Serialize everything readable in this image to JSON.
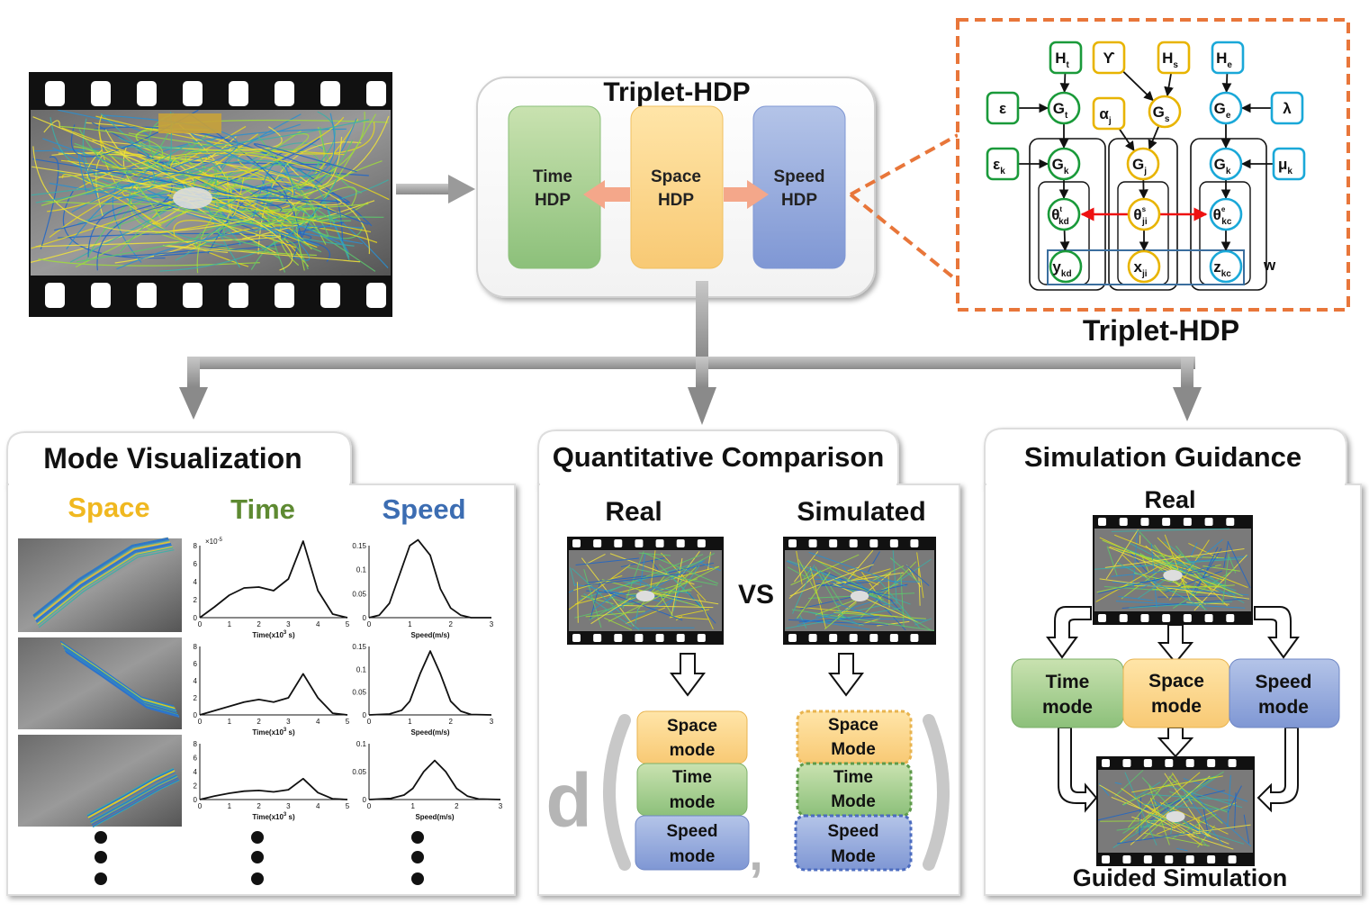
{
  "pipeline": {
    "title": "Triplet-HDP",
    "time_box": [
      "Time",
      "HDP"
    ],
    "space_box": [
      "Space",
      "HDP"
    ],
    "speed_box": [
      "Speed",
      "HDP"
    ]
  },
  "graph": {
    "caption": "Triplet-HDP",
    "plate_label": "w",
    "nodes": {
      "Ht": "Ht",
      "gamma": "ϒ",
      "Hs": "Hs",
      "He": "He",
      "eps": "ε",
      "Gt": "Gt",
      "alpha": "αj",
      "Gs": "Gs",
      "Ge": "Ge",
      "lambda": "λ",
      "epsk": "εk",
      "Gk1": "Gk",
      "Gj": "Gj",
      "Gk2": "Gk",
      "muk": "μk",
      "th_t": "θtkd",
      "th_s": "θsji",
      "th_e": "θekc",
      "ykd": "ykd",
      "xji": "xji",
      "zkc": "zkc"
    }
  },
  "panels": {
    "mode_visualization": {
      "title": "Mode Visualization",
      "headers": {
        "space": "Space",
        "time": "Time",
        "speed": "Speed"
      },
      "time_xlabel": "Time(x10",
      "time_xlabel_unit": " s)",
      "speed_xlabel": "Speed(m/s)",
      "time_scale": "×10",
      "time_scale_exp": "-5",
      "time_xticks": [
        "0",
        "1",
        "2",
        "3",
        "4",
        "5"
      ],
      "speed_xticks": [
        "0",
        "1",
        "2",
        "3"
      ],
      "time_yticks": [
        "0",
        "2",
        "4",
        "6",
        "8"
      ],
      "speed_yticks_1": [
        "0",
        "0.05",
        "0.1",
        "0.15"
      ],
      "speed_yticks_2": [
        "0",
        "0.05",
        "0.1",
        "0.15"
      ],
      "speed_yticks_3": [
        "0",
        "0.05",
        "0.1"
      ]
    },
    "quantitative_comparison": {
      "title": "Quantitative Comparison",
      "real": "Real",
      "simulated": "Simulated",
      "vs": "VS",
      "d": "d",
      "comma": ",",
      "left_modes": [
        [
          "Space",
          "mode"
        ],
        [
          "Time",
          "mode"
        ],
        [
          "Speed",
          "mode"
        ]
      ],
      "right_modes": [
        [
          "Space",
          "Mode"
        ],
        [
          "Time",
          "Mode"
        ],
        [
          "Speed",
          "Mode"
        ]
      ]
    },
    "simulation_guidance": {
      "title": "Simulation Guidance",
      "real": "Real",
      "modes": [
        [
          "Time",
          "mode"
        ],
        [
          "Space",
          "mode"
        ],
        [
          "Speed",
          "mode"
        ]
      ],
      "footer": "Guided Simulation"
    }
  },
  "chart_data": [
    {
      "type": "line",
      "x": [
        0,
        0.5,
        1,
        1.5,
        2,
        2.5,
        3,
        3.5,
        4,
        4.5,
        5
      ],
      "y": [
        0,
        1.2,
        2.5,
        3.3,
        3.4,
        3.0,
        4.3,
        8.5,
        3.0,
        0.4,
        0
      ],
      "ylim": [
        0,
        8
      ],
      "xlim": [
        0,
        5
      ],
      "ylabel": "×10-5",
      "xlabel": "Time(x10 3 s)"
    },
    {
      "type": "line",
      "x": [
        0,
        0.5,
        1,
        1.5,
        2,
        2.5,
        3,
        3.5,
        4,
        4.5,
        5
      ],
      "y": [
        0,
        0.5,
        1.0,
        1.5,
        1.8,
        1.5,
        2.0,
        4.8,
        2.0,
        0.2,
        0
      ],
      "ylim": [
        0,
        8
      ],
      "xlim": [
        0,
        5
      ],
      "xlabel": "Time(x10 3 s)"
    },
    {
      "type": "line",
      "x": [
        0,
        0.5,
        1,
        1.5,
        2,
        2.5,
        3,
        3.5,
        4,
        4.5,
        5
      ],
      "y": [
        0,
        0.5,
        0.9,
        1.2,
        1.3,
        1.1,
        1.4,
        3.0,
        1.0,
        0.1,
        0
      ],
      "ylim": [
        0,
        8
      ],
      "xlim": [
        0,
        5
      ],
      "xlabel": "Time(x10 3 s)"
    },
    {
      "type": "line",
      "x": [
        0,
        0.25,
        0.5,
        0.75,
        1,
        1.2,
        1.5,
        1.75,
        2,
        2.25,
        2.5,
        3
      ],
      "y": [
        0,
        0.005,
        0.03,
        0.09,
        0.15,
        0.17,
        0.13,
        0.06,
        0.02,
        0.005,
        0,
        0
      ],
      "ylim": [
        0,
        0.15
      ],
      "xlim": [
        0,
        3
      ],
      "xlabel": "Speed(m/s)"
    },
    {
      "type": "line",
      "x": [
        0,
        0.5,
        0.8,
        1,
        1.25,
        1.5,
        1.75,
        2,
        2.25,
        2.5,
        3
      ],
      "y": [
        0,
        0.002,
        0.01,
        0.03,
        0.09,
        0.14,
        0.09,
        0.03,
        0.008,
        0.001,
        0
      ],
      "ylim": [
        0,
        0.15
      ],
      "xlim": [
        0,
        3
      ],
      "xlabel": "Speed(m/s)"
    },
    {
      "type": "line",
      "x": [
        0,
        0.5,
        0.8,
        1,
        1.25,
        1.5,
        1.75,
        2,
        2.25,
        2.5,
        3
      ],
      "y": [
        0,
        0.002,
        0.008,
        0.02,
        0.05,
        0.07,
        0.05,
        0.02,
        0.006,
        0.001,
        0
      ],
      "ylim": [
        0,
        0.1
      ],
      "xlim": [
        0,
        3
      ],
      "xlabel": "Speed(m/s)"
    }
  ]
}
